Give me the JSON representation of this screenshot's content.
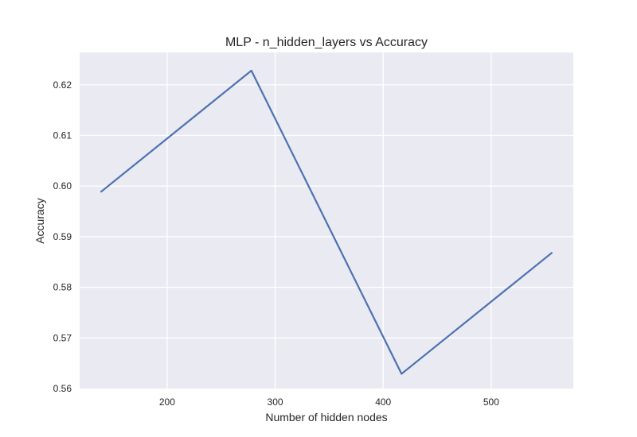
{
  "chart_data": {
    "type": "line",
    "title": "MLP - n_hidden_layers vs Accuracy",
    "xlabel": "Number of hidden nodes",
    "ylabel": "Accuracy",
    "xlim": [
      119,
      576
    ],
    "ylim": [
      0.56,
      0.6264
    ],
    "xticks": [
      200,
      300,
      400,
      500
    ],
    "yticks": [
      0.56,
      0.57,
      0.58,
      0.59,
      0.6,
      0.61,
      0.62
    ],
    "grid": true,
    "series": [
      {
        "x": [
          139,
          278,
          417,
          556
        ],
        "values": [
          0.5989,
          0.6228,
          0.5629,
          0.5868
        ],
        "color": "#4c72b0"
      }
    ],
    "colors": {
      "plot_background": "#eaeaf2",
      "grid": "#ffffff",
      "line": "#4c72b0"
    }
  }
}
